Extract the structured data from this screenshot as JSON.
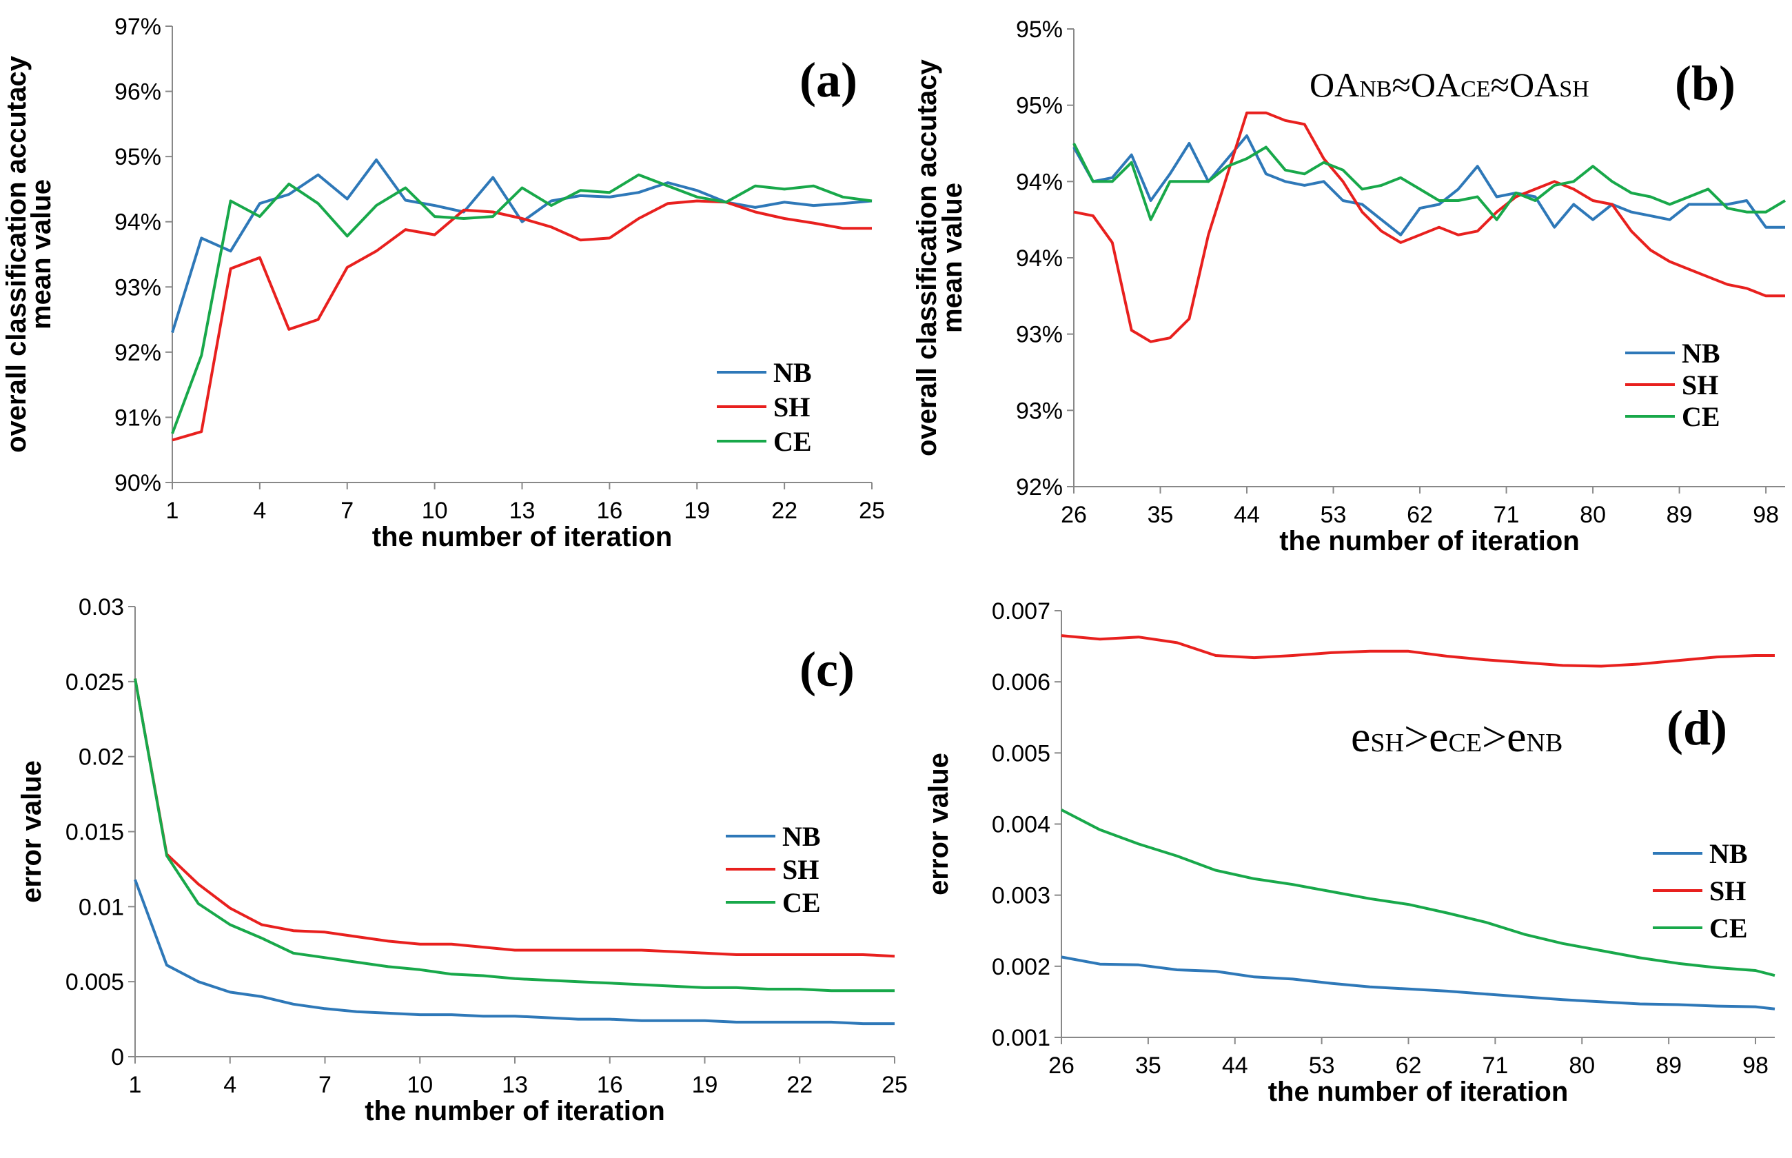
{
  "colors": {
    "NB": "#2e78b8",
    "SH": "#e8201e",
    "CE": "#18a84a"
  },
  "chart_data": [
    {
      "type": "line",
      "panel": "(a)",
      "title": "",
      "xlabel": "the number of iteration",
      "ylabel": [
        "overall classification accutacy",
        "mean value"
      ],
      "xlim": [
        1,
        25
      ],
      "ylim": [
        90,
        97
      ],
      "xticks": [
        1,
        4,
        7,
        10,
        13,
        16,
        19,
        22,
        25
      ],
      "xtick_labels": [
        "1",
        "4",
        "7",
        "10",
        "13",
        "16",
        "19",
        "22",
        "25"
      ],
      "yticks": [
        90,
        91,
        92,
        93,
        94,
        95,
        96,
        97
      ],
      "ytick_labels": [
        "90%",
        "91%",
        "92%",
        "93%",
        "94%",
        "95%",
        "96%",
        "97%"
      ],
      "legend_position": "bottom-right",
      "x": [
        1,
        2,
        3,
        4,
        5,
        6,
        7,
        8,
        9,
        10,
        11,
        12,
        13,
        14,
        15,
        16,
        17,
        18,
        19,
        20,
        21,
        22,
        23,
        24,
        25
      ],
      "series": [
        {
          "name": "NB",
          "values": [
            92.3,
            93.75,
            93.55,
            94.28,
            94.42,
            94.72,
            94.35,
            94.95,
            94.33,
            94.25,
            94.15,
            94.68,
            94.0,
            94.32,
            94.4,
            94.38,
            94.45,
            94.6,
            94.48,
            94.3,
            94.22,
            94.3,
            94.25,
            94.28,
            94.32
          ]
        },
        {
          "name": "SH",
          "values": [
            90.65,
            90.78,
            93.28,
            93.45,
            92.35,
            92.5,
            93.3,
            93.55,
            93.88,
            93.8,
            94.18,
            94.15,
            94.05,
            93.92,
            93.72,
            93.75,
            94.05,
            94.28,
            94.32,
            94.3,
            94.15,
            94.05,
            93.98,
            93.9,
            93.9
          ]
        },
        {
          "name": "CE",
          "values": [
            90.75,
            91.95,
            94.32,
            94.08,
            94.58,
            94.28,
            93.78,
            94.25,
            94.52,
            94.08,
            94.05,
            94.08,
            94.52,
            94.25,
            94.48,
            94.45,
            94.72,
            94.55,
            94.38,
            94.3,
            94.55,
            94.5,
            94.55,
            94.38,
            94.32
          ]
        }
      ]
    },
    {
      "type": "line",
      "panel": "(b)",
      "title": "",
      "annotation": {
        "parts": [
          "OA",
          "NB",
          "≈OA",
          "CE",
          "≈OA",
          "SH"
        ]
      },
      "xlabel": "the  number of iteration",
      "ylabel": [
        "overall classification accutacy",
        "mean value"
      ],
      "xlim": [
        26,
        100
      ],
      "ylim": [
        0,
        6
      ],
      "xticks": [
        26,
        35,
        44,
        53,
        62,
        71,
        80,
        89,
        98
      ],
      "xtick_labels": [
        "26",
        "35",
        "44",
        "53",
        "62",
        "71",
        "80",
        "89",
        "98"
      ],
      "yticks": [
        0,
        1,
        2,
        3,
        4,
        5,
        6
      ],
      "ytick_labels": [
        "92%",
        "93%",
        "93%",
        "94%",
        "94%",
        "95%",
        "95%"
      ],
      "legend_position": "right",
      "x": [
        26,
        28,
        30,
        32,
        34,
        36,
        38,
        40,
        42,
        44,
        46,
        48,
        50,
        52,
        54,
        56,
        58,
        60,
        62,
        64,
        66,
        68,
        70,
        72,
        74,
        76,
        78,
        80,
        82,
        84,
        86,
        88,
        90,
        92,
        94,
        96,
        98,
        100
      ],
      "series": [
        {
          "name": "NB",
          "values": [
            4.45,
            4.0,
            4.05,
            4.35,
            3.75,
            4.1,
            4.5,
            4.0,
            4.3,
            4.6,
            4.1,
            4.0,
            3.95,
            4.0,
            3.75,
            3.7,
            3.5,
            3.3,
            3.65,
            3.7,
            3.9,
            4.2,
            3.8,
            3.85,
            3.8,
            3.4,
            3.7,
            3.5,
            3.7,
            3.6,
            3.55,
            3.5,
            3.7,
            3.7,
            3.7,
            3.75,
            3.4,
            3.4
          ]
        },
        {
          "name": "SH",
          "values": [
            3.6,
            3.55,
            3.2,
            2.05,
            1.9,
            1.95,
            2.2,
            3.3,
            4.1,
            4.9,
            4.9,
            4.8,
            4.75,
            4.3,
            4.0,
            3.6,
            3.35,
            3.2,
            3.3,
            3.4,
            3.3,
            3.35,
            3.6,
            3.8,
            3.9,
            4.0,
            3.9,
            3.75,
            3.7,
            3.35,
            3.1,
            2.95,
            2.85,
            2.75,
            2.65,
            2.6,
            2.5,
            2.5
          ]
        },
        {
          "name": "CE",
          "values": [
            4.5,
            4.0,
            4.0,
            4.25,
            3.5,
            4.0,
            4.0,
            4.0,
            4.2,
            4.3,
            4.45,
            4.15,
            4.1,
            4.25,
            4.15,
            3.9,
            3.95,
            4.05,
            3.9,
            3.75,
            3.75,
            3.8,
            3.5,
            3.85,
            3.75,
            3.95,
            4.0,
            4.2,
            4.0,
            3.85,
            3.8,
            3.7,
            3.8,
            3.9,
            3.65,
            3.6,
            3.6,
            3.75
          ]
        }
      ]
    },
    {
      "type": "line",
      "panel": "(c)",
      "title": "",
      "xlabel": "the number of iteration",
      "ylabel": [
        "error value"
      ],
      "xlim": [
        1,
        25
      ],
      "ylim": [
        0,
        0.03
      ],
      "xticks": [
        1,
        4,
        7,
        10,
        13,
        16,
        19,
        22,
        25
      ],
      "xtick_labels": [
        "1",
        "4",
        "7",
        "10",
        "13",
        "16",
        "19",
        "22",
        "25"
      ],
      "yticks": [
        0,
        0.005,
        0.01,
        0.015,
        0.02,
        0.025,
        0.03
      ],
      "ytick_labels": [
        "0",
        "0.005",
        "0.01",
        "0.015",
        "0.02",
        "0.025",
        "0.03"
      ],
      "legend_position": "right",
      "x": [
        1,
        2,
        3,
        4,
        5,
        6,
        7,
        8,
        9,
        10,
        11,
        12,
        13,
        14,
        15,
        16,
        17,
        18,
        19,
        20,
        21,
        22,
        23,
        24,
        25
      ],
      "series": [
        {
          "name": "NB",
          "values": [
            0.0118,
            0.0061,
            0.005,
            0.0043,
            0.004,
            0.0035,
            0.0032,
            0.003,
            0.0029,
            0.0028,
            0.0028,
            0.0027,
            0.0027,
            0.0026,
            0.0025,
            0.0025,
            0.0024,
            0.0024,
            0.0024,
            0.0023,
            0.0023,
            0.0023,
            0.0023,
            0.0022,
            0.0022
          ]
        },
        {
          "name": "SH",
          "values": [
            0.0252,
            0.0135,
            0.0115,
            0.0099,
            0.0088,
            0.0084,
            0.0083,
            0.008,
            0.0077,
            0.0075,
            0.0075,
            0.0073,
            0.0071,
            0.0071,
            0.0071,
            0.0071,
            0.0071,
            0.007,
            0.0069,
            0.0068,
            0.0068,
            0.0068,
            0.0068,
            0.0068,
            0.0067
          ]
        },
        {
          "name": "CE",
          "values": [
            0.0252,
            0.0134,
            0.0102,
            0.0088,
            0.0079,
            0.0069,
            0.0066,
            0.0063,
            0.006,
            0.0058,
            0.0055,
            0.0054,
            0.0052,
            0.0051,
            0.005,
            0.0049,
            0.0048,
            0.0047,
            0.0046,
            0.0046,
            0.0045,
            0.0045,
            0.0044,
            0.0044,
            0.0044
          ]
        }
      ]
    },
    {
      "type": "line",
      "panel": "(d)",
      "title": "",
      "annotation": {
        "parts": [
          "e",
          "SH",
          ">e",
          "CE",
          ">e",
          "NB"
        ]
      },
      "xlabel": "the number of iteration",
      "ylabel": [
        "error value"
      ],
      "xlim": [
        26,
        100
      ],
      "ylim": [
        0.001,
        0.007
      ],
      "xticks": [
        26,
        35,
        44,
        53,
        62,
        71,
        80,
        89,
        98
      ],
      "xtick_labels": [
        "26",
        "35",
        "44",
        "53",
        "62",
        "71",
        "80",
        "89",
        "98"
      ],
      "yticks": [
        0.001,
        0.002,
        0.003,
        0.004,
        0.005,
        0.006,
        0.007
      ],
      "ytick_labels": [
        "0.001",
        "0.002",
        "0.003",
        "0.004",
        "0.005",
        "0.006",
        "0.007"
      ],
      "legend_position": "right",
      "x": [
        26,
        30,
        34,
        38,
        42,
        46,
        50,
        54,
        58,
        62,
        66,
        70,
        74,
        78,
        82,
        86,
        90,
        94,
        98,
        100
      ],
      "series": [
        {
          "name": "NB",
          "values": [
            0.00213,
            0.00203,
            0.00202,
            0.00195,
            0.00193,
            0.00185,
            0.00182,
            0.00176,
            0.00171,
            0.00168,
            0.00165,
            0.00161,
            0.00157,
            0.00153,
            0.0015,
            0.00147,
            0.00146,
            0.00144,
            0.00143,
            0.0014
          ]
        },
        {
          "name": "SH",
          "values": [
            0.00665,
            0.0066,
            0.00663,
            0.00655,
            0.00637,
            0.00634,
            0.00637,
            0.00641,
            0.00643,
            0.00643,
            0.00636,
            0.00631,
            0.00627,
            0.00623,
            0.00622,
            0.00625,
            0.0063,
            0.00635,
            0.00637,
            0.00637
          ]
        },
        {
          "name": "CE",
          "values": [
            0.0042,
            0.00392,
            0.00372,
            0.00355,
            0.00335,
            0.00323,
            0.00315,
            0.00305,
            0.00295,
            0.00287,
            0.00275,
            0.00262,
            0.00245,
            0.00232,
            0.00222,
            0.00212,
            0.00204,
            0.00198,
            0.00194,
            0.00187
          ]
        }
      ]
    }
  ]
}
